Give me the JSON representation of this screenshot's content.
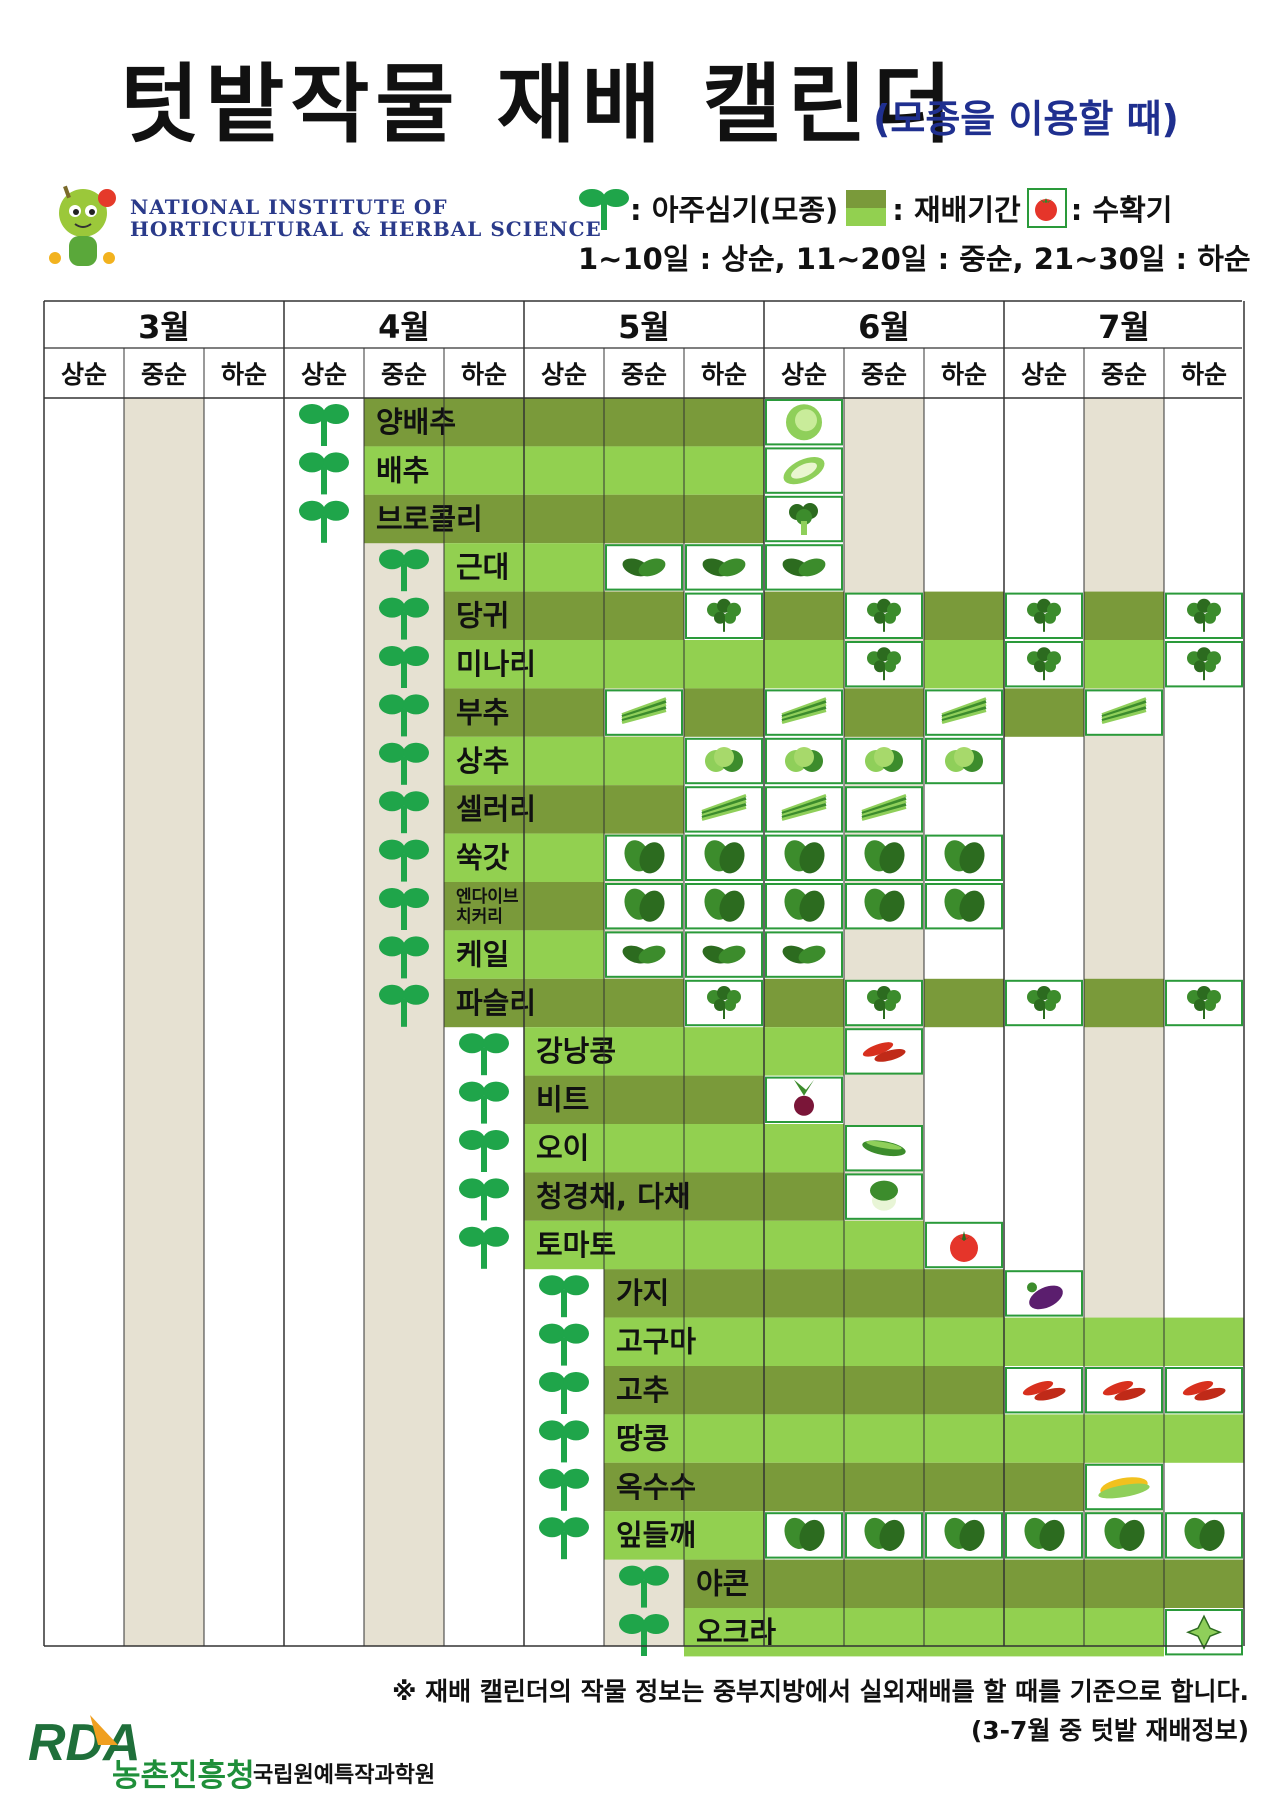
{
  "title": "텃밭작물 재배 캘린더",
  "subtitle": "(모종을 이용할 때)",
  "institute": {
    "line1": "NATIONAL INSTITUTE OF",
    "line2": "HORTICULTURAL & HERBAL SCIENCE"
  },
  "legend": {
    "transplant": ": 아주심기(모종)",
    "period": ": 재배기간",
    "harvest": ": 수확기",
    "periods_note": "1~10일 : 상순, 11~20일 : 중순, 21~30일 : 하순"
  },
  "months": [
    "3월",
    "4월",
    "5월",
    "6월",
    "7월"
  ],
  "dekads": [
    "상순",
    "중순",
    "하순"
  ],
  "colors": {
    "dark": "#7a9a3a",
    "light": "#92d050",
    "shade": "#e6e1d2",
    "sprout": "#1fa54a",
    "harvest_border": "#2a9a3a",
    "leaf": "#3c8c2c"
  },
  "crops": [
    {
      "name": "양배추",
      "transplant": 3,
      "grow_end": 8,
      "harvest": [
        9
      ],
      "icon": "cabbage"
    },
    {
      "name": "배추",
      "transplant": 3,
      "grow_end": 8,
      "harvest": [
        9
      ],
      "icon": "napa-cabbage"
    },
    {
      "name": "브로콜리",
      "transplant": 3,
      "grow_end": 8,
      "harvest": [
        9
      ],
      "icon": "broccoli"
    },
    {
      "name": "근대",
      "transplant": 4,
      "grow_end": 6,
      "harvest": [
        7,
        8,
        9
      ],
      "icon": "chard"
    },
    {
      "name": "당귀",
      "transplant": 4,
      "grow_end": 7,
      "harvest": [
        8,
        10,
        12,
        14
      ],
      "icon": "angelica"
    },
    {
      "name": "미나리",
      "transplant": 4,
      "grow_end": 9,
      "harvest": [
        10,
        12,
        14
      ],
      "icon": "dropwort"
    },
    {
      "name": "부추",
      "transplant": 4,
      "grow_end": 6,
      "harvest": [
        7,
        9,
        11,
        13
      ],
      "icon": "chives"
    },
    {
      "name": "상추",
      "transplant": 4,
      "grow_end": 7,
      "harvest": [
        8,
        9,
        10,
        11
      ],
      "icon": "lettuce"
    },
    {
      "name": "셀러리",
      "transplant": 4,
      "grow_end": 7,
      "harvest": [
        8,
        9,
        10
      ],
      "icon": "celery"
    },
    {
      "name": "쑥갓",
      "transplant": 4,
      "grow_end": 6,
      "harvest": [
        7,
        8,
        9,
        10,
        11
      ],
      "icon": "crown-daisy"
    },
    {
      "name": "엔다이브\n치커리",
      "transplant": 4,
      "grow_end": 6,
      "harvest": [
        7,
        8,
        9,
        10,
        11
      ],
      "icon": "endive"
    },
    {
      "name": "케일",
      "transplant": 4,
      "grow_end": 6,
      "harvest": [
        7,
        8,
        9
      ],
      "icon": "kale"
    },
    {
      "name": "파슬리",
      "transplant": 4,
      "grow_end": 7,
      "harvest": [
        8,
        10,
        12,
        14
      ],
      "icon": "parsley"
    },
    {
      "name": "강낭콩",
      "transplant": 5,
      "grow_end": 9,
      "harvest": [
        10
      ],
      "icon": "kidney-bean"
    },
    {
      "name": "비트",
      "transplant": 5,
      "grow_end": 8,
      "harvest": [
        9
      ],
      "icon": "beet"
    },
    {
      "name": "오이",
      "transplant": 5,
      "grow_end": 9,
      "harvest": [
        10
      ],
      "icon": "cucumber"
    },
    {
      "name": "청경채, 다채",
      "transplant": 5,
      "grow_end": 9,
      "harvest": [
        10
      ],
      "icon": "bok-choy"
    },
    {
      "name": "토마토",
      "transplant": 5,
      "grow_end": 10,
      "harvest": [
        11
      ],
      "icon": "tomato"
    },
    {
      "name": "가지",
      "transplant": 6,
      "grow_end": 11,
      "harvest": [
        12
      ],
      "icon": "eggplant"
    },
    {
      "name": "고구마",
      "transplant": 6,
      "grow_end": 14,
      "harvest": [],
      "icon": ""
    },
    {
      "name": "고추",
      "transplant": 6,
      "grow_end": 11,
      "harvest": [
        12,
        13,
        14
      ],
      "icon": "pepper"
    },
    {
      "name": "땅콩",
      "transplant": 6,
      "grow_end": 14,
      "harvest": [],
      "icon": ""
    },
    {
      "name": "옥수수",
      "transplant": 6,
      "grow_end": 12,
      "harvest": [
        13
      ],
      "icon": "corn"
    },
    {
      "name": "잎들깨",
      "transplant": 6,
      "grow_end": 8,
      "harvest": [
        9,
        10,
        11,
        12,
        13,
        14
      ],
      "icon": "perilla"
    },
    {
      "name": "야콘",
      "transplant": 7,
      "grow_end": 14,
      "harvest": [],
      "icon": ""
    },
    {
      "name": "오크라",
      "transplant": 7,
      "grow_end": 13,
      "harvest": [
        14
      ],
      "icon": "okra"
    }
  ],
  "footnote": {
    "line1": "※ 재배 캘린더의 작물 정보는 중부지방에서 실외재배를 할 때를 기준으로 합니다.",
    "line2": "(3-7월  중 텃밭 재배정보)"
  },
  "org": {
    "logo_text": "RDA",
    "name": "농촌진흥청",
    "sub": "국립원예특작과학원"
  }
}
